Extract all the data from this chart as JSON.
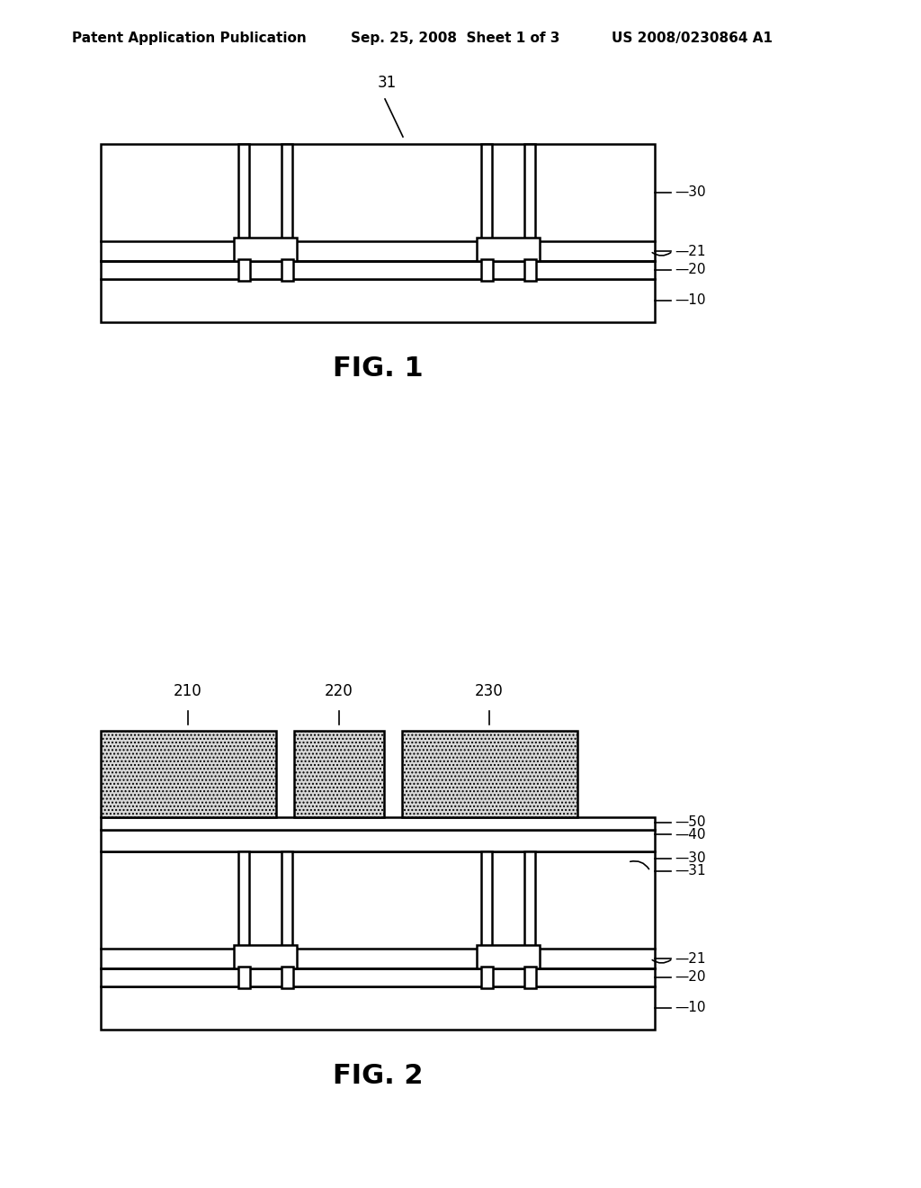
{
  "bg_color": "#ffffff",
  "line_color": "#000000",
  "header_left": "Patent Application Publication",
  "header_mid": "Sep. 25, 2008  Sheet 1 of 3",
  "header_right": "US 2008/0230864 A1",
  "fig1_title": "FIG. 1",
  "fig2_title": "FIG. 2"
}
